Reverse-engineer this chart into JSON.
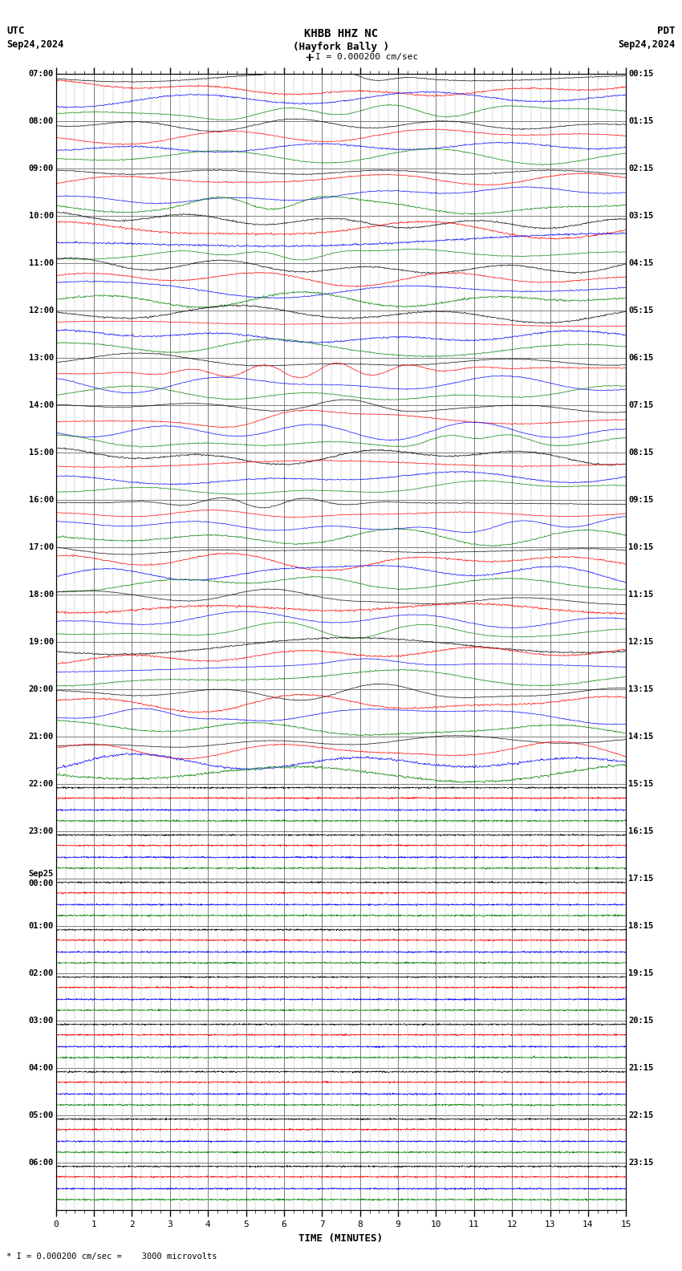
{
  "title_line1": "KHBB HHZ NC",
  "title_line2": "(Hayfork Bally )",
  "scale_text": "I = 0.000200 cm/sec",
  "utc_label": "UTC",
  "utc_date": "Sep24,2024",
  "pdt_label": "PDT",
  "pdt_date": "Sep24,2024",
  "xlabel": "TIME (MINUTES)",
  "footer_text": "* I = 0.000200 cm/sec =    3000 microvolts",
  "bg_color": "#ffffff",
  "trace_colors": [
    "black",
    "red",
    "blue",
    "green"
  ],
  "left_labels": [
    "07:00",
    "08:00",
    "09:00",
    "10:00",
    "11:00",
    "12:00",
    "13:00",
    "14:00",
    "15:00",
    "16:00",
    "17:00",
    "18:00",
    "19:00",
    "20:00",
    "21:00",
    "22:00",
    "23:00",
    "Sep25\n00:00",
    "01:00",
    "02:00",
    "03:00",
    "04:00",
    "05:00",
    "06:00"
  ],
  "right_labels": [
    "00:15",
    "01:15",
    "02:15",
    "03:15",
    "04:15",
    "05:15",
    "06:15",
    "07:15",
    "08:15",
    "09:15",
    "10:15",
    "11:15",
    "12:15",
    "13:15",
    "14:15",
    "15:15",
    "16:15",
    "17:15",
    "18:15",
    "19:15",
    "20:15",
    "21:15",
    "22:15",
    "23:15"
  ],
  "n_rows": 24,
  "n_traces_per_row": 4,
  "x_min": 0,
  "x_max": 15,
  "x_ticks": [
    0,
    1,
    2,
    3,
    4,
    5,
    6,
    7,
    8,
    9,
    10,
    11,
    12,
    13,
    14,
    15
  ],
  "figsize": [
    8.5,
    15.84
  ],
  "dpi": 100,
  "grid_color": "#aaaaaa",
  "major_grid_color": "#666666",
  "active_rows": 15,
  "seed": 42
}
